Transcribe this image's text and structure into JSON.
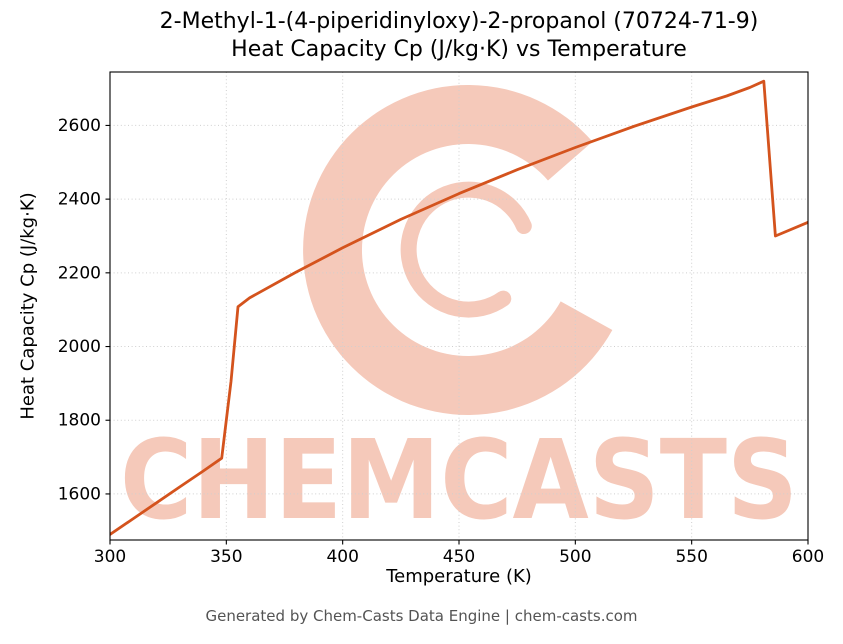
{
  "title": {
    "line1": "2-Methyl-1-(4-piperidinyloxy)-2-propanol (70724-71-9)",
    "line2": "Heat Capacity Cp (J/kg·K) vs Temperature"
  },
  "footer": "Generated by Chem-Casts Data Engine | chem-casts.com",
  "watermark": {
    "text": "CHEMCASTS",
    "color": "#f5c9ba"
  },
  "chart_data": {
    "type": "line",
    "title": "2-Methyl-1-(4-piperidinyloxy)-2-propanol (70724-71-9) Heat Capacity Cp (J/kg·K) vs Temperature",
    "xlabel": "Temperature (K)",
    "ylabel": "Heat Capacity Cp (J/kg·K)",
    "xlim": [
      300,
      600
    ],
    "ylim": [
      1475,
      2745
    ],
    "xticks": [
      300,
      350,
      400,
      450,
      500,
      550,
      600
    ],
    "yticks": [
      1600,
      1800,
      2000,
      2200,
      2400,
      2600
    ],
    "grid": true,
    "legend": "none",
    "line_color": "#d4531d",
    "grid_color": "#cfcfcf",
    "series": [
      {
        "name": "Heat Capacity Cp",
        "points": [
          [
            300,
            1490
          ],
          [
            310,
            1533
          ],
          [
            320,
            1576
          ],
          [
            330,
            1619
          ],
          [
            340,
            1662
          ],
          [
            348,
            1697
          ],
          [
            352,
            1905
          ],
          [
            355,
            2108
          ],
          [
            360,
            2132
          ],
          [
            380,
            2202
          ],
          [
            400,
            2268
          ],
          [
            425,
            2345
          ],
          [
            450,
            2415
          ],
          [
            475,
            2480
          ],
          [
            500,
            2540
          ],
          [
            525,
            2597
          ],
          [
            550,
            2650
          ],
          [
            565,
            2680
          ],
          [
            575,
            2703
          ],
          [
            581,
            2720
          ],
          [
            586,
            2300
          ],
          [
            600,
            2337
          ]
        ]
      }
    ]
  }
}
